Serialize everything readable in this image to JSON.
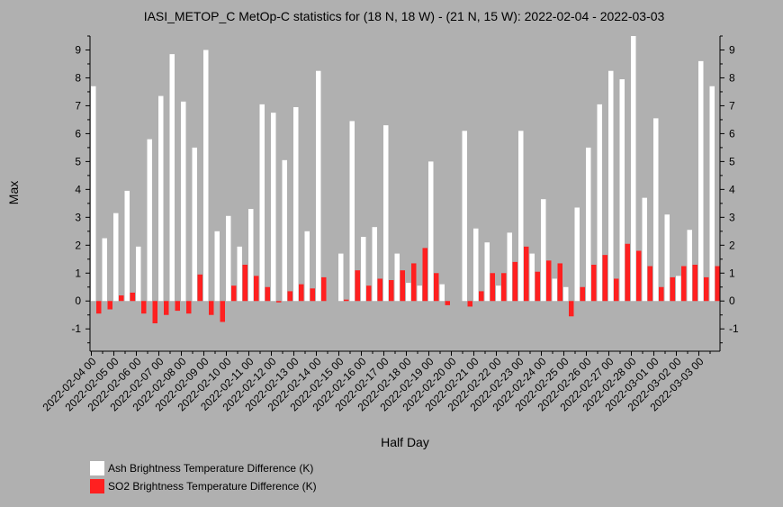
{
  "chart_data": {
    "type": "bar",
    "title": "IASI_METOP_C MetOp-C statistics for (18 N, 18 W) - (21 N, 15 W): 2022-02-04 - 2022-03-03",
    "xlabel": "Half Day",
    "ylabel": "Max",
    "ylim": [
      -1.8,
      9.5
    ],
    "yticks": [
      -1,
      0,
      1,
      2,
      3,
      4,
      5,
      6,
      7,
      8,
      9
    ],
    "xtick_labels": [
      "2022-02-04 00",
      "2022-02-05 00",
      "2022-02-06 00",
      "2022-02-07 00",
      "2022-02-08 00",
      "2022-02-09 00",
      "2022-02-10 00",
      "2022-02-11 00",
      "2022-02-12 00",
      "2022-02-13 00",
      "2022-02-14 00",
      "2022-02-15 00",
      "2022-02-16 00",
      "2022-02-17 00",
      "2022-02-18 00",
      "2022-02-19 00",
      "2022-02-20 00",
      "2022-02-21 00",
      "2022-02-22 00",
      "2022-02-23 00",
      "2022-02-24 00",
      "2022-02-25 00",
      "2022-02-26 00",
      "2022-02-27 00",
      "2022-02-28 00",
      "2022-03-01 00",
      "2022-03-02 00",
      "2022-03-03 00"
    ],
    "series": [
      {
        "name": "Ash Brightness Temperature Difference (K)",
        "color": "#ffffff",
        "values": [
          7.7,
          2.25,
          3.15,
          3.95,
          1.95,
          5.8,
          7.35,
          8.85,
          7.15,
          5.5,
          9.0,
          2.5,
          3.05,
          1.95,
          3.3,
          7.05,
          6.75,
          5.05,
          6.95,
          2.5,
          8.25,
          null,
          1.7,
          6.45,
          2.3,
          2.65,
          6.3,
          1.7,
          0.65,
          0.55,
          5.0,
          0.6,
          null,
          6.1,
          2.6,
          2.1,
          0.55,
          2.45,
          6.1,
          1.7,
          3.65,
          0.8,
          0.5,
          3.35,
          5.5,
          7.05,
          8.25,
          7.95,
          9.5,
          3.7,
          6.55,
          3.1,
          0.9,
          2.55,
          8.6,
          7.7
        ]
      },
      {
        "name": "SO2 Brightness Temperature Difference (K)",
        "color": "#ff2020",
        "values": [
          -0.45,
          -0.3,
          0.2,
          0.3,
          -0.45,
          -0.8,
          -0.5,
          -0.35,
          -0.45,
          0.95,
          -0.5,
          -0.75,
          0.55,
          1.3,
          0.9,
          0.5,
          -0.05,
          0.35,
          0.6,
          0.45,
          0.85,
          null,
          0.05,
          1.1,
          0.55,
          0.8,
          0.75,
          1.1,
          1.35,
          1.9,
          1.0,
          -0.15,
          null,
          -0.2,
          0.35,
          1.0,
          1.0,
          1.4,
          1.95,
          1.05,
          1.45,
          1.35,
          -0.55,
          0.5,
          1.3,
          1.65,
          0.8,
          2.05,
          1.8,
          1.25,
          0.5,
          0.85,
          1.25,
          1.3,
          0.85,
          1.25
        ]
      }
    ],
    "legend_position": "bottom-left",
    "grid": false
  }
}
